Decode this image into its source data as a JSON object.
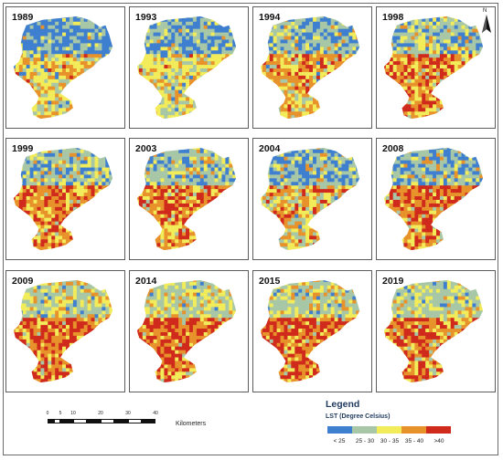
{
  "figure": {
    "panels": [
      {
        "year": "1989",
        "palette": "cool"
      },
      {
        "year": "1993",
        "palette": "cool2"
      },
      {
        "year": "1994",
        "palette": "mid"
      },
      {
        "year": "1998",
        "palette": "warm"
      },
      {
        "year": "1999",
        "palette": "warm"
      },
      {
        "year": "2003",
        "palette": "warm"
      },
      {
        "year": "2004",
        "palette": "mid2"
      },
      {
        "year": "2008",
        "palette": "warm2"
      },
      {
        "year": "2009",
        "palette": "hot"
      },
      {
        "year": "2014",
        "palette": "hot"
      },
      {
        "year": "2015",
        "palette": "hot"
      },
      {
        "year": "2019",
        "palette": "hot2"
      }
    ],
    "north_label": "N"
  },
  "scale": {
    "ticks": [
      "0",
      "5",
      "10",
      "20",
      "30",
      "40"
    ],
    "unit": "Kilometers"
  },
  "legend": {
    "title": "Legend",
    "subtitle": "LST (Degree Celsius)",
    "classes": [
      {
        "label": "< 25",
        "color": "#3f7fd0"
      },
      {
        "label": "25 - 30",
        "color": "#a7c7a6"
      },
      {
        "label": "30 - 35",
        "color": "#f3ec5a"
      },
      {
        "label": "35 - 40",
        "color": "#e7922b"
      },
      {
        "label": ">40",
        "color": "#d02a1c"
      }
    ]
  }
}
